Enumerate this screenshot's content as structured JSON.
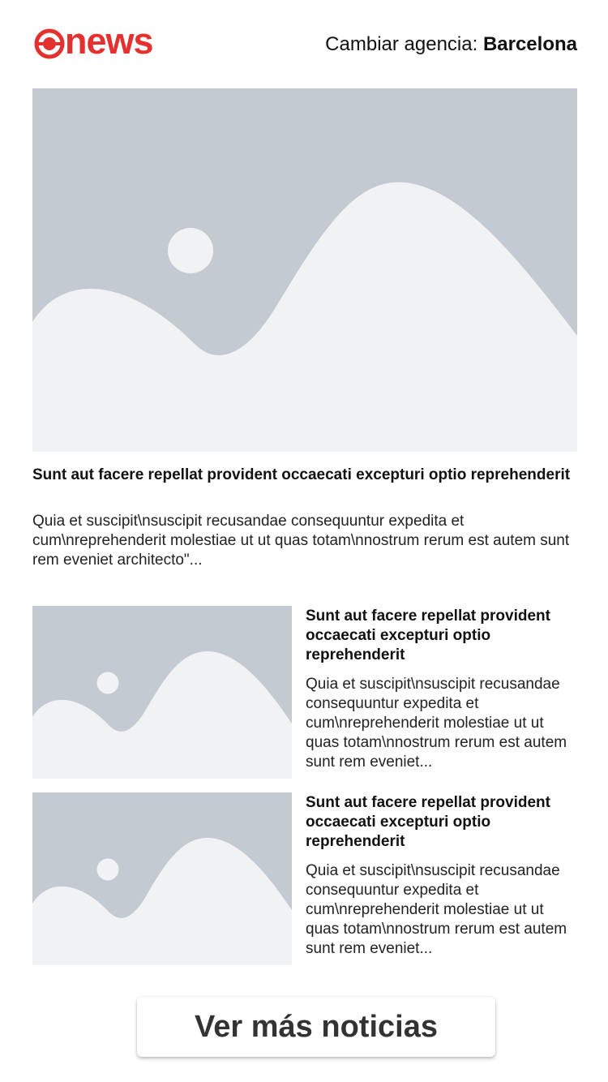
{
  "header": {
    "logo_text": "news",
    "agency_prefix": "Cambiar agencia: ",
    "agency_city": "Barcelona"
  },
  "colors": {
    "brand": "#e3312f",
    "placeholder_bg": "#c3cad1",
    "placeholder_fg": "#f1f2f4"
  },
  "featured": {
    "image_icon": "image-placeholder-icon",
    "title": "Sunt aut facere repellat provident occaecati excepturi optio reprehenderit",
    "summary": "Quia et suscipit\\nsuscipit recusandae consequuntur expedita et cum\\nreprehenderit molestiae ut ut quas totam\\nnostrum rerum est autem sunt rem eveniet architecto\"..."
  },
  "articles": [
    {
      "image_icon": "image-placeholder-icon",
      "title": "Sunt aut facere repellat provident occaecati excepturi optio reprehenderit",
      "summary": "Quia et suscipit\\nsuscipit recusandae consequuntur expedita et cum\\nreprehenderit molestiae ut ut quas totam\\nnostrum rerum est autem sunt rem eveniet..."
    },
    {
      "image_icon": "image-placeholder-icon",
      "title": "Sunt aut facere repellat provident occaecati excepturi optio reprehenderit",
      "summary": "Quia et suscipit\\nsuscipit recusandae consequuntur expedita et cum\\nreprehenderit molestiae ut ut quas totam\\nnostrum rerum est autem sunt rem eveniet..."
    }
  ],
  "more_button": {
    "label": "Ver más noticias"
  }
}
